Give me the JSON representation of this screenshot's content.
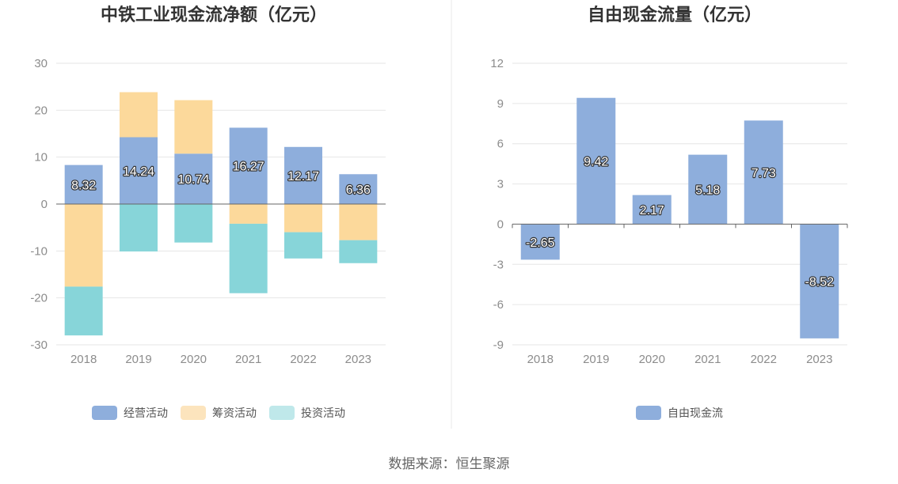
{
  "source_label": "数据来源：恒生聚源",
  "colors": {
    "operating": "#8eaedc",
    "financing": "#fcd99b",
    "investing": "#87d5d9",
    "free_cash_flow": "#8eaedc",
    "legend_financing": "#fce4bd",
    "legend_investing": "#bfe8ea",
    "grid": "#e6e6e6",
    "axis": "#666666"
  },
  "chart_data": [
    {
      "type": "bar",
      "stacked": true,
      "title": "中铁工业现金流净额（亿元）",
      "categories": [
        "2018",
        "2019",
        "2020",
        "2021",
        "2022",
        "2023"
      ],
      "ylim": [
        -30,
        30
      ],
      "yticks": [
        30,
        20,
        10,
        0,
        -10,
        -20,
        -30
      ],
      "grid": true,
      "legend_position": "bottom",
      "series": [
        {
          "name": "经营活动",
          "values": [
            8.32,
            14.24,
            10.74,
            16.27,
            12.17,
            6.36
          ],
          "labels": [
            "8.32",
            "14.24",
            "10.74",
            "16.27",
            "12.17",
            "6.36"
          ]
        },
        {
          "name": "筹资活动",
          "values": [
            -17.6,
            9.6,
            11.4,
            -4.2,
            -6.0,
            -7.7
          ]
        },
        {
          "name": "投资活动",
          "values": [
            -10.4,
            -10.1,
            -8.2,
            -14.8,
            -5.6,
            -4.9
          ]
        }
      ]
    },
    {
      "type": "bar",
      "title": "自由现金流量（亿元）",
      "categories": [
        "2018",
        "2019",
        "2020",
        "2021",
        "2022",
        "2023"
      ],
      "ylim": [
        -9,
        12
      ],
      "yticks": [
        12,
        9,
        6,
        3,
        0,
        -3,
        -6,
        -9
      ],
      "grid": true,
      "legend_position": "bottom",
      "series": [
        {
          "name": "自由现金流",
          "values": [
            -2.65,
            9.42,
            2.17,
            5.18,
            7.73,
            -8.52
          ],
          "labels": [
            "-2.65",
            "9.42",
            "2.17",
            "5.18",
            "7.73",
            "-8.52"
          ]
        }
      ]
    }
  ]
}
